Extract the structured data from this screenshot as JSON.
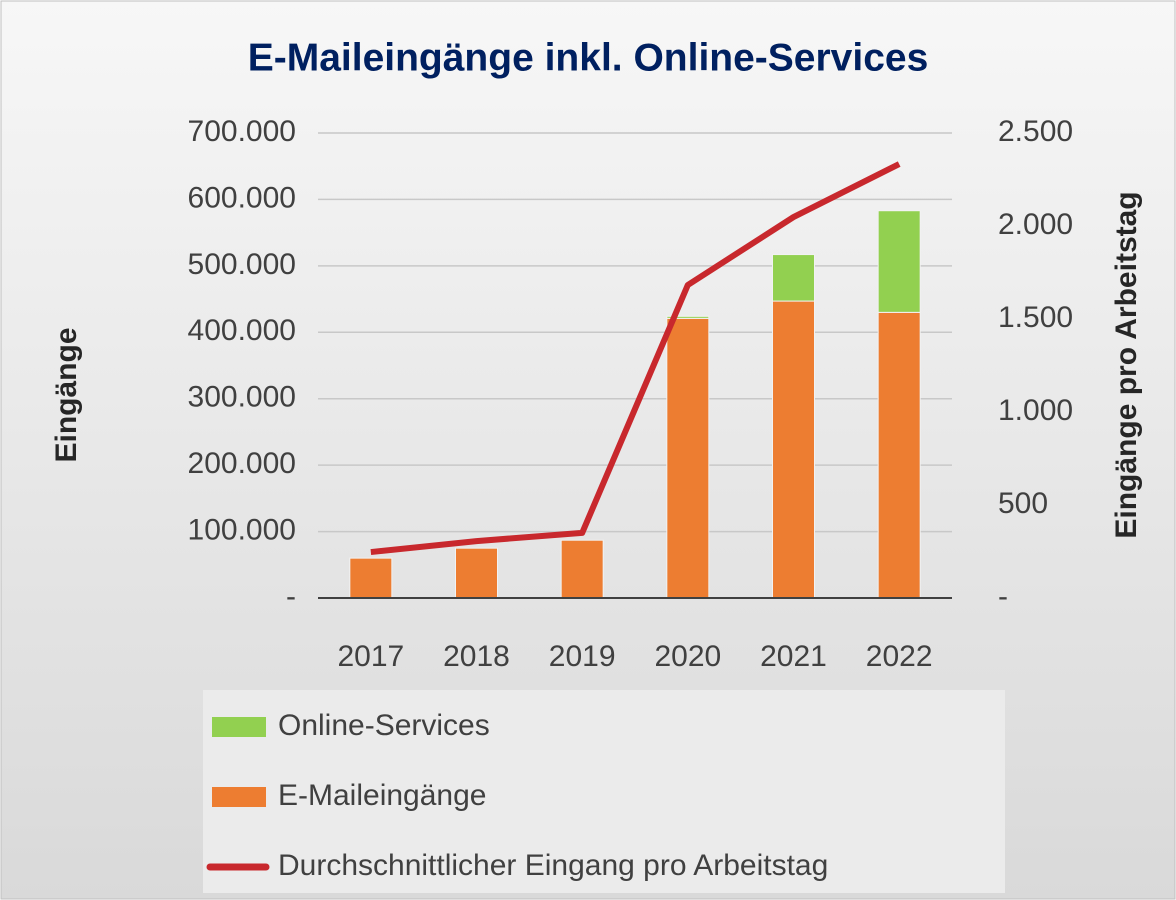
{
  "chart_data": {
    "type": "bar",
    "stacked": true,
    "title": "E-Maileingänge inkl. Online-Services",
    "y_label": "Eingänge",
    "y2_label": "Eingänge pro Arbeitstag",
    "categories": [
      "2017",
      "2018",
      "2019",
      "2020",
      "2021",
      "2022"
    ],
    "series": [
      {
        "name": "E-Maileingänge",
        "type": "bar",
        "color": "#ed7d31",
        "values": [
          60000,
          75000,
          87000,
          421000,
          447000,
          430000
        ]
      },
      {
        "name": "Online-Services",
        "type": "bar",
        "color": "#92d050",
        "values": [
          0,
          0,
          0,
          3000,
          70000,
          153000
        ]
      },
      {
        "name": "Durchschnittlicher Eingang pro Arbeitstag",
        "type": "line",
        "axis": "y2",
        "color": "#c8282d",
        "values": [
          247,
          306,
          350,
          1683,
          2048,
          2333
        ]
      }
    ],
    "ylim": [
      0,
      700000
    ],
    "yticks": [
      {
        "value": 0,
        "label": "-"
      },
      {
        "value": 100000,
        "label": "100.000"
      },
      {
        "value": 200000,
        "label": "200.000"
      },
      {
        "value": 300000,
        "label": "300.000"
      },
      {
        "value": 400000,
        "label": "400.000"
      },
      {
        "value": 500000,
        "label": "500.000"
      },
      {
        "value": 600000,
        "label": "600.000"
      },
      {
        "value": 700000,
        "label": "700.000"
      }
    ],
    "y2lim": [
      0,
      2500
    ],
    "y2ticks": [
      {
        "value": 0,
        "label": "-"
      },
      500,
      {
        "value": 1000,
        "label": "1.000"
      },
      {
        "value": 1500,
        "label": "1.500"
      },
      {
        "value": 2000,
        "label": "2.000"
      },
      {
        "value": 2500,
        "label": "2.500"
      }
    ],
    "grid": true,
    "legend": "bottom"
  }
}
